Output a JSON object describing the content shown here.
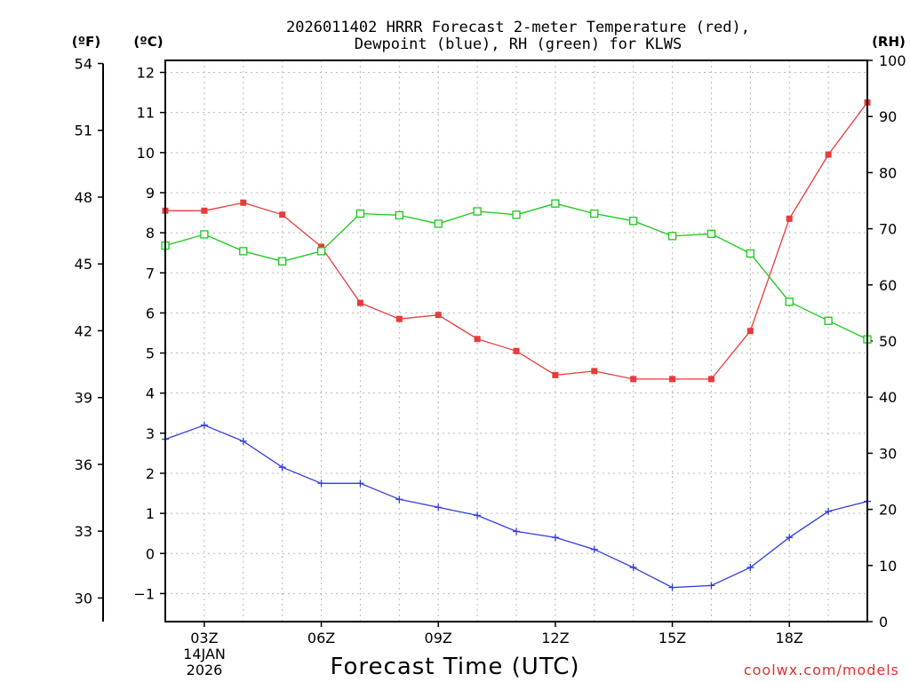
{
  "chart_data": {
    "type": "line",
    "title_line1": "2026011402 HRRR Forecast 2-meter Temperature (red),",
    "title_line2": "Dewpoint (blue), RH (green) for KLWS",
    "xlabel": "Forecast Time (UTC)",
    "credit": "coolwx.com/models",
    "date_label_line1": "14JAN",
    "date_label_line2": "2026",
    "units": {
      "fahrenheit": "(ºF)",
      "celsius": "(ºC)",
      "rh": "(RH)"
    },
    "x_hours": [
      2,
      3,
      4,
      5,
      6,
      7,
      8,
      9,
      10,
      11,
      12,
      13,
      14,
      15,
      16,
      17,
      18,
      19,
      20
    ],
    "x_range": [
      2,
      20
    ],
    "x_ticks": [
      3,
      6,
      9,
      12,
      15,
      18
    ],
    "x_tick_labels": [
      "03Z",
      "06Z",
      "09Z",
      "12Z",
      "15Z",
      "18Z"
    ],
    "celsius_range": [
      -1.7,
      12.3
    ],
    "celsius_ticks": [
      -1,
      0,
      1,
      2,
      3,
      4,
      5,
      6,
      7,
      8,
      9,
      10,
      11,
      12
    ],
    "celsius_tick_labels": [
      "−1",
      "0",
      "1",
      "2",
      "3",
      "4",
      "5",
      "6",
      "7",
      "8",
      "9",
      "10",
      "11",
      "12"
    ],
    "fahrenheit_ticks": [
      30,
      33,
      36,
      39,
      42,
      45,
      48,
      51,
      54
    ],
    "fahrenheit_tick_labels": [
      "30",
      "33",
      "36",
      "39",
      "42",
      "45",
      "48",
      "51",
      "54"
    ],
    "rh_range": [
      0,
      100
    ],
    "rh_ticks": [
      0,
      10,
      20,
      30,
      40,
      50,
      60,
      70,
      80,
      90,
      100
    ],
    "rh_tick_labels": [
      "0",
      "10",
      "20",
      "30",
      "40",
      "50",
      "60",
      "70",
      "80",
      "90",
      "100"
    ],
    "series": [
      {
        "name": "Temperature",
        "color": "#e83a3a",
        "axis": "celsius",
        "marker": "filled-square",
        "values": [
          8.55,
          8.55,
          8.75,
          8.45,
          7.65,
          6.25,
          5.85,
          5.95,
          5.35,
          5.05,
          4.45,
          4.55,
          4.35,
          4.35,
          4.35,
          5.55,
          8.35,
          9.95,
          11.25
        ]
      },
      {
        "name": "Dewpoint",
        "color": "#2f3ee0",
        "axis": "celsius",
        "marker": "plus",
        "values": [
          2.85,
          3.2,
          2.8,
          2.15,
          1.75,
          1.75,
          1.35,
          1.15,
          0.95,
          0.55,
          0.4,
          0.1,
          -0.35,
          -0.85,
          -0.8,
          -0.35,
          0.4,
          1.05,
          1.3
        ]
      },
      {
        "name": "RH",
        "color": "#19c819",
        "axis": "rh",
        "marker": "open-square",
        "values": [
          67,
          69,
          66,
          64.2,
          66,
          72.7,
          72.4,
          70.9,
          73.1,
          72.5,
          74.5,
          72.7,
          71.4,
          68.7,
          69.1,
          65.6,
          57,
          53.6,
          50.3
        ]
      }
    ]
  }
}
